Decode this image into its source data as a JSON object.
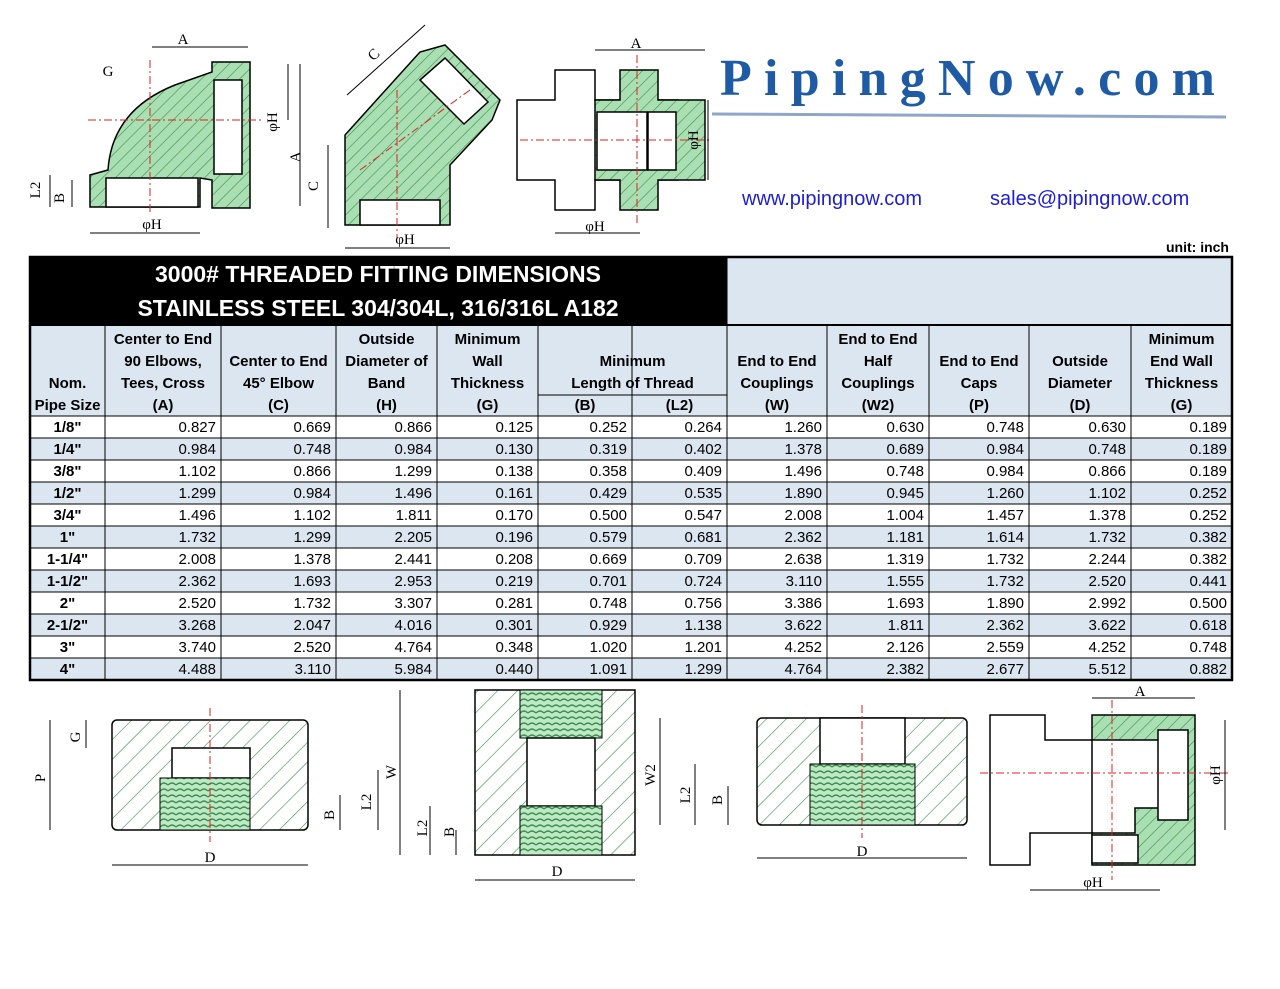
{
  "header": {
    "logo": "PipingNow.com",
    "website": "www.pipingnow.com",
    "email": "sales@pipingnow.com",
    "unit": "unit: inch"
  },
  "table": {
    "title": [
      "3000# THREADED FITTING DIMENSIONS",
      "STAINLESS STEEL 304/304L, 316/316L  A182"
    ],
    "headers": [
      [
        "Nom.",
        "Pipe Size"
      ],
      [
        "Center to End",
        "90 Elbows,",
        "Tees, Cross",
        "(A)"
      ],
      [
        "Center to End",
        "45° Elbow",
        "(C)"
      ],
      [
        "Outside",
        "Diameter of",
        "Band",
        "(H)"
      ],
      [
        "Minimum",
        "Wall",
        "Thickness",
        "(G)"
      ],
      [
        "Minimum",
        "Length of Thread"
      ],
      [
        "End to End",
        "Couplings",
        "(W)"
      ],
      [
        "End to End",
        "Half",
        "Couplings",
        "(W2)"
      ],
      [
        "End to End",
        "Caps",
        "(P)"
      ],
      [
        "Outside",
        "Diameter",
        "(D)"
      ],
      [
        "Minimum",
        "End Wall",
        "Thickness",
        "(G)"
      ]
    ],
    "subheaders": [
      "(B)",
      "(L2)"
    ],
    "rows": [
      [
        "1/8\"",
        "0.827",
        "0.669",
        "0.866",
        "0.125",
        "0.252",
        "0.264",
        "1.260",
        "0.630",
        "0.748",
        "0.630",
        "0.189"
      ],
      [
        "1/4\"",
        "0.984",
        "0.748",
        "0.984",
        "0.130",
        "0.319",
        "0.402",
        "1.378",
        "0.689",
        "0.984",
        "0.748",
        "0.189"
      ],
      [
        "3/8\"",
        "1.102",
        "0.866",
        "1.299",
        "0.138",
        "0.358",
        "0.409",
        "1.496",
        "0.748",
        "0.984",
        "0.866",
        "0.189"
      ],
      [
        "1/2\"",
        "1.299",
        "0.984",
        "1.496",
        "0.161",
        "0.429",
        "0.535",
        "1.890",
        "0.945",
        "1.260",
        "1.102",
        "0.252"
      ],
      [
        "3/4\"",
        "1.496",
        "1.102",
        "1.811",
        "0.170",
        "0.500",
        "0.547",
        "2.008",
        "1.004",
        "1.457",
        "1.378",
        "0.252"
      ],
      [
        "1\"",
        "1.732",
        "1.299",
        "2.205",
        "0.196",
        "0.579",
        "0.681",
        "2.362",
        "1.181",
        "1.614",
        "1.732",
        "0.382"
      ],
      [
        "1-1/4\"",
        "2.008",
        "1.378",
        "2.441",
        "0.208",
        "0.669",
        "0.709",
        "2.638",
        "1.319",
        "1.732",
        "2.244",
        "0.382"
      ],
      [
        "1-1/2\"",
        "2.362",
        "1.693",
        "2.953",
        "0.219",
        "0.701",
        "0.724",
        "3.110",
        "1.555",
        "1.732",
        "2.520",
        "0.441"
      ],
      [
        "2\"",
        "2.520",
        "1.732",
        "3.307",
        "0.281",
        "0.748",
        "0.756",
        "3.386",
        "1.693",
        "1.890",
        "2.992",
        "0.500"
      ],
      [
        "2-1/2\"",
        "3.268",
        "2.047",
        "4.016",
        "0.301",
        "0.929",
        "1.138",
        "3.622",
        "1.811",
        "2.362",
        "3.622",
        "0.618"
      ],
      [
        "3\"",
        "3.740",
        "2.520",
        "4.764",
        "0.348",
        "1.020",
        "1.201",
        "4.252",
        "2.126",
        "2.559",
        "4.252",
        "0.748"
      ],
      [
        "4\"",
        "4.488",
        "3.110",
        "5.984",
        "0.440",
        "1.091",
        "1.299",
        "4.764",
        "2.382",
        "2.677",
        "5.512",
        "0.882"
      ]
    ]
  },
  "drawings": [
    {
      "labels": [
        "A",
        "G",
        "φH",
        "A",
        "L2",
        "B",
        "φH"
      ]
    },
    {
      "labels": [
        "C",
        "C",
        "φH"
      ]
    },
    {
      "labels": [
        "A",
        "φH",
        "φH"
      ]
    },
    {
      "labels": [
        "G",
        "P",
        "L2",
        "B",
        "D"
      ]
    },
    {
      "labels": [
        "W",
        "L2",
        "B",
        "D"
      ]
    },
    {
      "labels": [
        "W2",
        "L2",
        "B",
        "D"
      ]
    },
    {
      "labels": [
        "A",
        "φH",
        "φH"
      ]
    }
  ]
}
